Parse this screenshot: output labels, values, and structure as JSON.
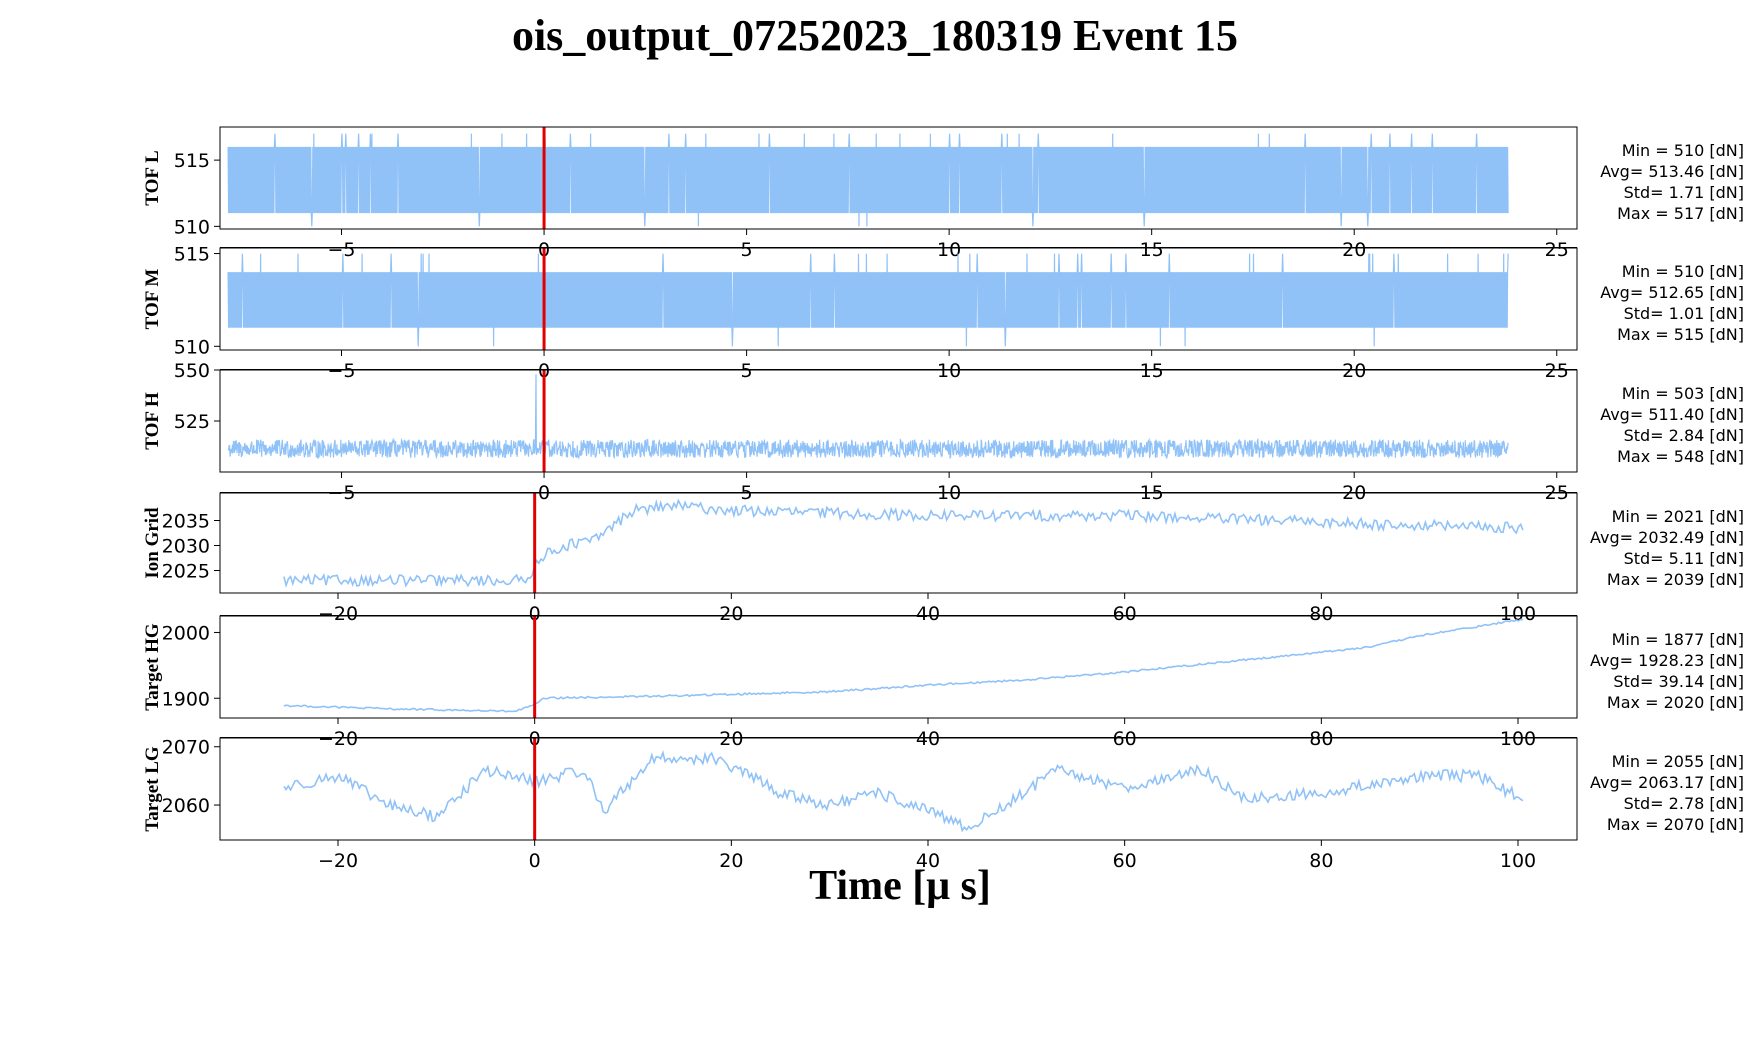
{
  "figure": {
    "title": "ois_output_07252023_180319 Event 15",
    "xlabel": "Time [μ s]",
    "colors": {
      "trace": "#90c2f8",
      "trigger": "#e00000",
      "axes": "#000000"
    }
  },
  "chart_data": [
    {
      "type": "line",
      "ylabel": "TOF L",
      "xlim": [
        -8,
        25.5
      ],
      "ylim": [
        509.8,
        517.5
      ],
      "xticks": [
        -5,
        0,
        5,
        10,
        15,
        20,
        25
      ],
      "yticks": [
        510,
        515
      ],
      "x_range": [
        -7.8,
        23.8
      ],
      "trigger_x": 0,
      "trace": {
        "kind": "dense_noise",
        "samples": 2600,
        "base": 513.0,
        "low": 511,
        "high": 516,
        "spike_hi": 517,
        "spike_lo": 510
      },
      "stats": [
        "Min = 510 [dN]",
        "Avg= 513.46 [dN]",
        "Std= 1.71 [dN]",
        "Max = 517 [dN]"
      ]
    },
    {
      "type": "line",
      "ylabel": "TOF M",
      "xlim": [
        -8,
        25.5
      ],
      "ylim": [
        509.8,
        515.3
      ],
      "xticks": [
        -5,
        0,
        5,
        10,
        15,
        20,
        25
      ],
      "yticks": [
        510,
        515
      ],
      "x_range": [
        -7.8,
        23.8
      ],
      "trigger_x": 0,
      "trace": {
        "kind": "dense_noise",
        "samples": 2600,
        "base": 512.5,
        "low": 511,
        "high": 514,
        "spike_hi": 515,
        "spike_lo": 510
      },
      "stats": [
        "Min = 510 [dN]",
        "Avg= 512.65 [dN]",
        "Std= 1.01 [dN]",
        "Max = 515 [dN]"
      ]
    },
    {
      "type": "line",
      "ylabel": "TOF H",
      "xlim": [
        -8,
        25.5
      ],
      "ylim": [
        500,
        550
      ],
      "xticks": [
        -5,
        0,
        5,
        10,
        15,
        20,
        25
      ],
      "yticks": [
        525,
        550
      ],
      "x_range": [
        -7.8,
        23.8
      ],
      "trigger_x": 0,
      "spike": {
        "x": -0.2,
        "y": 548
      },
      "trace": {
        "kind": "band_noise",
        "samples": 2600,
        "base": 511.4,
        "amp": 4.5
      },
      "stats": [
        "Min = 503 [dN]",
        "Avg= 511.40 [dN]",
        "Std= 2.84 [dN]",
        "Max = 548 [dN]"
      ]
    },
    {
      "type": "line",
      "ylabel": "Ion Grid",
      "xlim": [
        -32,
        106
      ],
      "ylim": [
        2020.5,
        2040.5
      ],
      "xticks": [
        -20,
        0,
        20,
        40,
        60,
        80,
        100
      ],
      "yticks": [
        2025,
        2030,
        2035
      ],
      "x_range": [
        -25.5,
        100.5
      ],
      "trigger_x": 0,
      "trace": {
        "kind": "anchors",
        "samples": 560,
        "noise": 1.1,
        "anchors": [
          [
            -25.5,
            2023
          ],
          [
            -0.5,
            2023
          ],
          [
            0,
            2027
          ],
          [
            3,
            2030
          ],
          [
            6,
            2031
          ],
          [
            10,
            2037
          ],
          [
            14,
            2038
          ],
          [
            20,
            2037
          ],
          [
            40,
            2036
          ],
          [
            60,
            2036
          ],
          [
            75,
            2035
          ],
          [
            90,
            2034
          ],
          [
            100.5,
            2033.5
          ]
        ]
      },
      "stats": [
        "Min = 2021 [dN]",
        "Avg= 2032.49 [dN]",
        "Std= 5.11 [dN]",
        "Max = 2039 [dN]"
      ]
    },
    {
      "type": "line",
      "ylabel": "Target HG",
      "xlim": [
        -32,
        106
      ],
      "ylim": [
        1870,
        2025
      ],
      "xticks": [
        -20,
        0,
        20,
        40,
        60,
        80,
        100
      ],
      "yticks": [
        1900,
        2000
      ],
      "x_range": [
        -25.5,
        100.5
      ],
      "trigger_x": 0,
      "trace": {
        "kind": "anchors",
        "samples": 560,
        "noise": 1.4,
        "anchors": [
          [
            -25.5,
            1889
          ],
          [
            -15,
            1884
          ],
          [
            -2,
            1880
          ],
          [
            0,
            1890
          ],
          [
            1,
            1900
          ],
          [
            15,
            1904
          ],
          [
            30,
            1910
          ],
          [
            40,
            1920
          ],
          [
            50,
            1928
          ],
          [
            60,
            1940
          ],
          [
            70,
            1955
          ],
          [
            80,
            1970
          ],
          [
            85,
            1978
          ],
          [
            90,
            1995
          ],
          [
            100.5,
            2020
          ]
        ]
      },
      "stats": [
        "Min = 1877 [dN]",
        "Avg= 1928.23 [dN]",
        "Std= 39.14 [dN]",
        "Max = 2020 [dN]"
      ]
    },
    {
      "type": "line",
      "ylabel": "Target LG",
      "xlim": [
        -32,
        106
      ],
      "ylim": [
        2054,
        2071.5
      ],
      "xticks": [
        -20,
        0,
        20,
        40,
        60,
        80,
        100
      ],
      "yticks": [
        2060,
        2070
      ],
      "x_range": [
        -25.5,
        100.5
      ],
      "trigger_x": 0,
      "trace": {
        "kind": "anchors",
        "samples": 560,
        "noise": 1.0,
        "anchors": [
          [
            -25.5,
            2063
          ],
          [
            -20,
            2065
          ],
          [
            -15,
            2060
          ],
          [
            -10,
            2058
          ],
          [
            -5,
            2066
          ],
          [
            0,
            2064
          ],
          [
            5,
            2066
          ],
          [
            7,
            2059
          ],
          [
            12,
            2068
          ],
          [
            18,
            2068
          ],
          [
            22,
            2065
          ],
          [
            25,
            2062
          ],
          [
            30,
            2060
          ],
          [
            35,
            2062
          ],
          [
            40,
            2059
          ],
          [
            44,
            2056
          ],
          [
            48,
            2060
          ],
          [
            53,
            2066
          ],
          [
            60,
            2063
          ],
          [
            68,
            2066
          ],
          [
            72,
            2061
          ],
          [
            80,
            2062
          ],
          [
            90,
            2065
          ],
          [
            96,
            2065
          ],
          [
            100.5,
            2061
          ]
        ]
      },
      "stats": [
        "Min = 2055 [dN]",
        "Avg= 2063.17 [dN]",
        "Std= 2.78 [dN]",
        "Max = 2070 [dN]"
      ]
    }
  ]
}
